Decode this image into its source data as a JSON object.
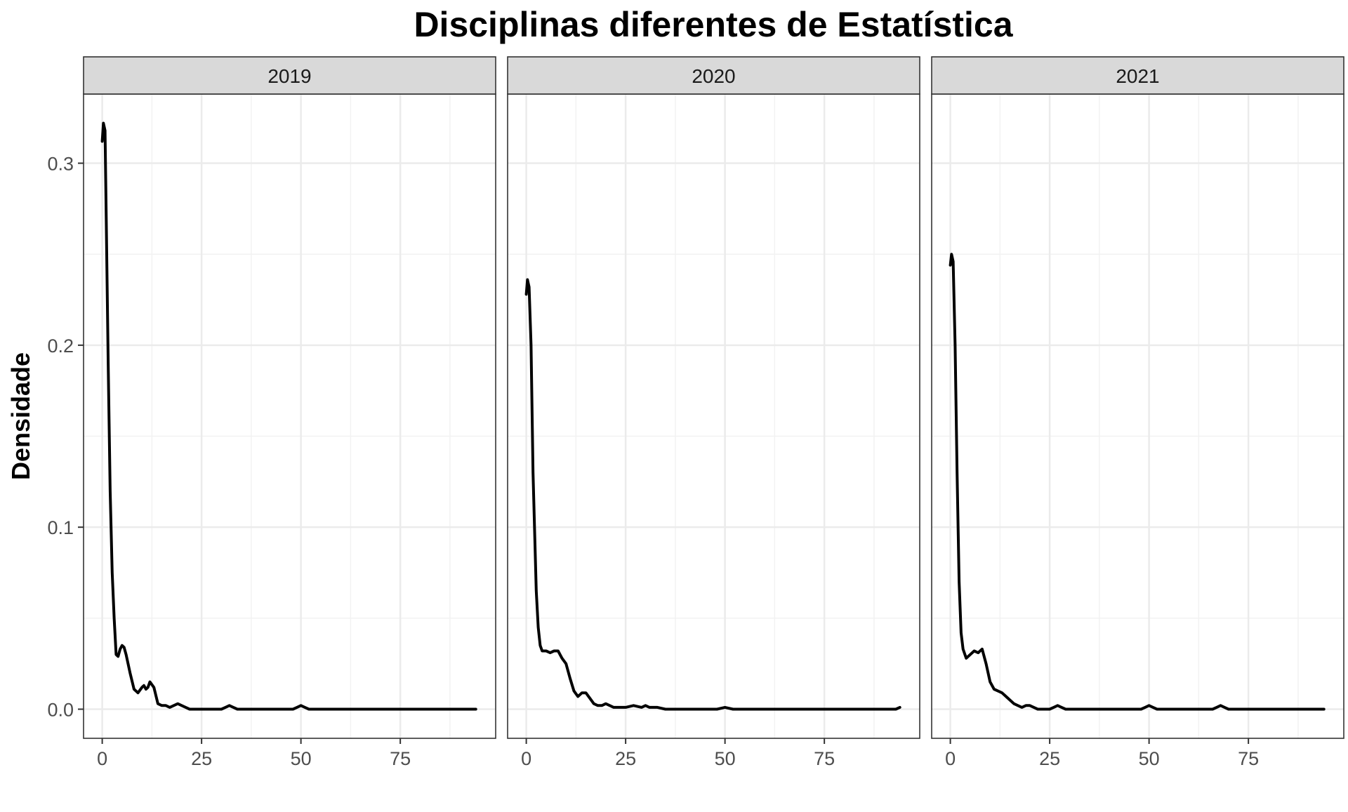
{
  "chart_data": {
    "type": "line",
    "title": "Disciplinas diferentes de Estatística",
    "xlabel": "",
    "ylabel": "Densidade",
    "xlim": [
      -4.7,
      99
    ],
    "ylim": [
      -0.016,
      0.338
    ],
    "x_ticks": [
      0,
      25,
      50,
      75
    ],
    "y_ticks": [
      0.0,
      0.1,
      0.2,
      0.3
    ],
    "y_tick_labels": [
      "0.0",
      "0.1",
      "0.2",
      "0.3"
    ],
    "grid": true,
    "line_color": "#000000",
    "panels": [
      {
        "label": "2019",
        "x": [
          0,
          0.3,
          0.7,
          1.0,
          1.5,
          2,
          2.5,
          3,
          3.5,
          4,
          4.5,
          5,
          5.5,
          6,
          7,
          8,
          9,
          10,
          10.5,
          11,
          11.5,
          12,
          13,
          14,
          15,
          16,
          17,
          18,
          19,
          20,
          21,
          22,
          25,
          30,
          31,
          32,
          33,
          34,
          40,
          48,
          49,
          50,
          51,
          52,
          60,
          70,
          80,
          94
        ],
        "y": [
          0.312,
          0.322,
          0.318,
          0.27,
          0.19,
          0.12,
          0.075,
          0.05,
          0.03,
          0.029,
          0.033,
          0.035,
          0.034,
          0.03,
          0.02,
          0.011,
          0.009,
          0.012,
          0.013,
          0.011,
          0.012,
          0.015,
          0.012,
          0.003,
          0.002,
          0.002,
          0.001,
          0.002,
          0.003,
          0.002,
          0.001,
          0.0,
          0.0,
          0.0,
          0.001,
          0.002,
          0.001,
          0.0,
          0.0,
          0.0,
          0.001,
          0.002,
          0.001,
          0.0,
          0.0,
          0.0,
          0.0,
          0.0
        ]
      },
      {
        "label": "2020",
        "x": [
          0,
          0.3,
          0.7,
          1.2,
          1.7,
          2.5,
          3,
          3.5,
          4,
          5,
          6,
          7,
          8,
          9,
          10,
          11,
          12,
          13,
          14,
          15,
          16,
          17,
          18,
          19,
          20,
          21,
          22,
          23,
          25,
          27,
          29,
          30,
          31,
          33,
          35,
          37,
          40,
          45,
          48,
          50,
          52,
          55,
          60,
          70,
          80,
          90,
          93,
          94
        ],
        "y": [
          0.228,
          0.236,
          0.232,
          0.2,
          0.13,
          0.065,
          0.045,
          0.035,
          0.032,
          0.032,
          0.031,
          0.032,
          0.032,
          0.028,
          0.025,
          0.017,
          0.01,
          0.007,
          0.009,
          0.009,
          0.006,
          0.003,
          0.002,
          0.002,
          0.003,
          0.002,
          0.001,
          0.001,
          0.001,
          0.002,
          0.001,
          0.002,
          0.001,
          0.001,
          0.0,
          0.0,
          0.0,
          0.0,
          0.0,
          0.001,
          0.0,
          0.0,
          0.0,
          0.0,
          0.0,
          0.0,
          0.0,
          0.001
        ]
      },
      {
        "label": "2021",
        "x": [
          0,
          0.3,
          0.7,
          1.2,
          1.7,
          2.2,
          2.7,
          3.2,
          4,
          5,
          6,
          7,
          8,
          9,
          10,
          11,
          12,
          13,
          14,
          15,
          16,
          17,
          18,
          19,
          20,
          21,
          22,
          25,
          26,
          27,
          28,
          29,
          35,
          45,
          48,
          49,
          50,
          51,
          52,
          60,
          65,
          66,
          67,
          68,
          69,
          70,
          80,
          94
        ],
        "y": [
          0.244,
          0.25,
          0.246,
          0.2,
          0.13,
          0.07,
          0.042,
          0.033,
          0.028,
          0.03,
          0.032,
          0.031,
          0.033,
          0.025,
          0.015,
          0.011,
          0.01,
          0.009,
          0.007,
          0.005,
          0.003,
          0.002,
          0.001,
          0.002,
          0.002,
          0.001,
          0.0,
          0.0,
          0.001,
          0.002,
          0.001,
          0.0,
          0.0,
          0.0,
          0.0,
          0.001,
          0.002,
          0.001,
          0.0,
          0.0,
          0.0,
          0.0,
          0.001,
          0.002,
          0.001,
          0.0,
          0.0,
          0.0
        ]
      }
    ]
  }
}
